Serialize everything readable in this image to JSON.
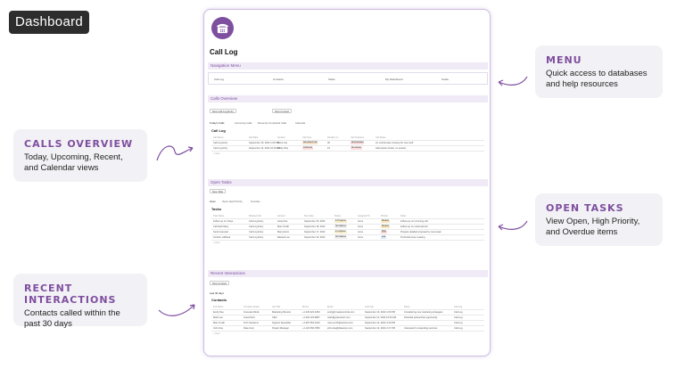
{
  "badge": "Dashboard",
  "callouts": {
    "menu": {
      "title": "MENU",
      "desc": "Quick access to databases and help resources"
    },
    "calls": {
      "title": "CALLS OVERVIEW",
      "desc": "Today, Upcoming, Recent, and Calendar views"
    },
    "tasks": {
      "title": "OPEN TASKS",
      "desc": "View Open, High Priority, and Overdue items"
    },
    "recent": {
      "title": "RECENT INTERACTIONS",
      "desc": "Contacts called within the past 30 days"
    }
  },
  "page": {
    "title": "Call Log",
    "nav_header": "Navigation Menu",
    "nav": [
      "Call Log",
      "Contacts",
      "Tasks",
      "My Dashboard",
      "Guide"
    ],
    "calls_header": "Calls Overview",
    "calls_buttons": [
      "New Call Log Entry",
      "New Contact"
    ],
    "calls_tabs": [
      "Today's Calls",
      "Upcoming Calls",
      "Recently Completed Calls",
      "Calendar"
    ],
    "calls_db": "Call Log",
    "calls_cols": [
      "Call Name",
      "Call Date",
      "Contact",
      "Call Type",
      "Duration (I...",
      "Call Outcome",
      "Call Notes"
    ],
    "calls_rows": [
      {
        "name": "Call Log Entry",
        "date": "September 15, 2024 1:00 PM",
        "contact": "Brent Lee",
        "type": "Scheduled Call",
        "dur": "30",
        "outcome": "Rescheduled",
        "notes": "An unfortunate crossing for new stuff"
      },
      {
        "name": "Call Log Entry",
        "date": "September 14, 2024 10:30 PM",
        "contact": "Emily Dice",
        "type": "Outbound",
        "dur": "15",
        "outcome": "No Answer",
        "notes": "Attempted contact, no answer"
      }
    ],
    "tasks_header": "Open Tasks",
    "tasks_button": "New Task",
    "tasks_tabs": [
      "Open",
      "Open High Priority",
      "Overdue"
    ],
    "tasks_db": "Tasks",
    "tasks_cols": [
      "Task Name",
      "Related Call",
      "Contact",
      "Due Date",
      "Status",
      "Assigned To",
      "Priority",
      "Notes"
    ],
    "tasks_rows": [
      {
        "name": "Follow up in 2 days",
        "call": "Call Log Entry",
        "contact": "Andy Doe",
        "due": "September 15, 2024",
        "status": "In Progress",
        "assigned": "Anne",
        "priority": "Medium",
        "notes": "Follow-up on incoming call"
      },
      {
        "name": "Call back Mary",
        "call": "Call Log Entry",
        "contact": "Mary Smith",
        "due": "September 18, 2024",
        "status": "Not Started",
        "assigned": "Anne",
        "priority": "Medium",
        "notes": "Follow up on voicemail left"
      },
      {
        "name": "Send proposal",
        "call": "Call Log Entry",
        "contact": "Mary Ennis",
        "due": "September 17, 2024",
        "status": "In progress",
        "assigned": "Anne",
        "priority": "High",
        "notes": "Prepare detailed proposal by next week"
      },
      {
        "name": "Another callback",
        "call": "Call Log Entry",
        "contact": "Edward Lee",
        "due": "September 19, 2024",
        "status": "Not Started",
        "assigned": "Anne",
        "priority": "Low",
        "notes": "Technical issue meeting"
      }
    ],
    "recent_header": "Recent Interactions",
    "recent_button": "New Contact",
    "recent_tabs": [
      "Last 30 days"
    ],
    "recent_db": "Contacts",
    "recent_cols": [
      "Full Name",
      "Company Name",
      "Job Title",
      "Phone",
      "Email",
      "Last Call",
      "Notes",
      "Call Log"
    ],
    "recent_rows": [
      {
        "name": "Emily Doe",
        "company": "Innovate Minds",
        "job": "Marketing Director",
        "phone": "+1 446 222-3333",
        "email": "emily@creativeminds.com",
        "last": "September 13, 2024 1:00 PM",
        "notes": "Considering new marketing strategies",
        "log": "Call Log"
      },
      {
        "name": "Mark Lee",
        "company": "GreenTech",
        "job": "CEO",
        "phone": "+1 302 123-9867",
        "email": "mark@greentech.com",
        "last": "September 11, 2024 10:30 AM",
        "notes": "Potential partnership opportunity",
        "log": "Call Log"
      },
      {
        "name": "Mary Smith",
        "company": "Tech Solutions",
        "job": "Support Specialist",
        "phone": "+1 987 654-3210",
        "email": "mary.smith@techsol.com",
        "last": "September 14, 2024 4:30 PM",
        "notes": "",
        "log": "Call Log"
      },
      {
        "name": "John Doe",
        "company": "Data Corp",
        "job": "Project Manager",
        "phone": "+1 123 456-7890",
        "email": "john.doe@datacorp.com",
        "last": "September 12, 2024 2:17 PM",
        "notes": "Interested in expanding services",
        "log": "Call Log"
      }
    ],
    "new_label": "+ New"
  },
  "colors": {
    "accent": "#7e4e9f",
    "callout_bg": "#f2f1f5"
  }
}
